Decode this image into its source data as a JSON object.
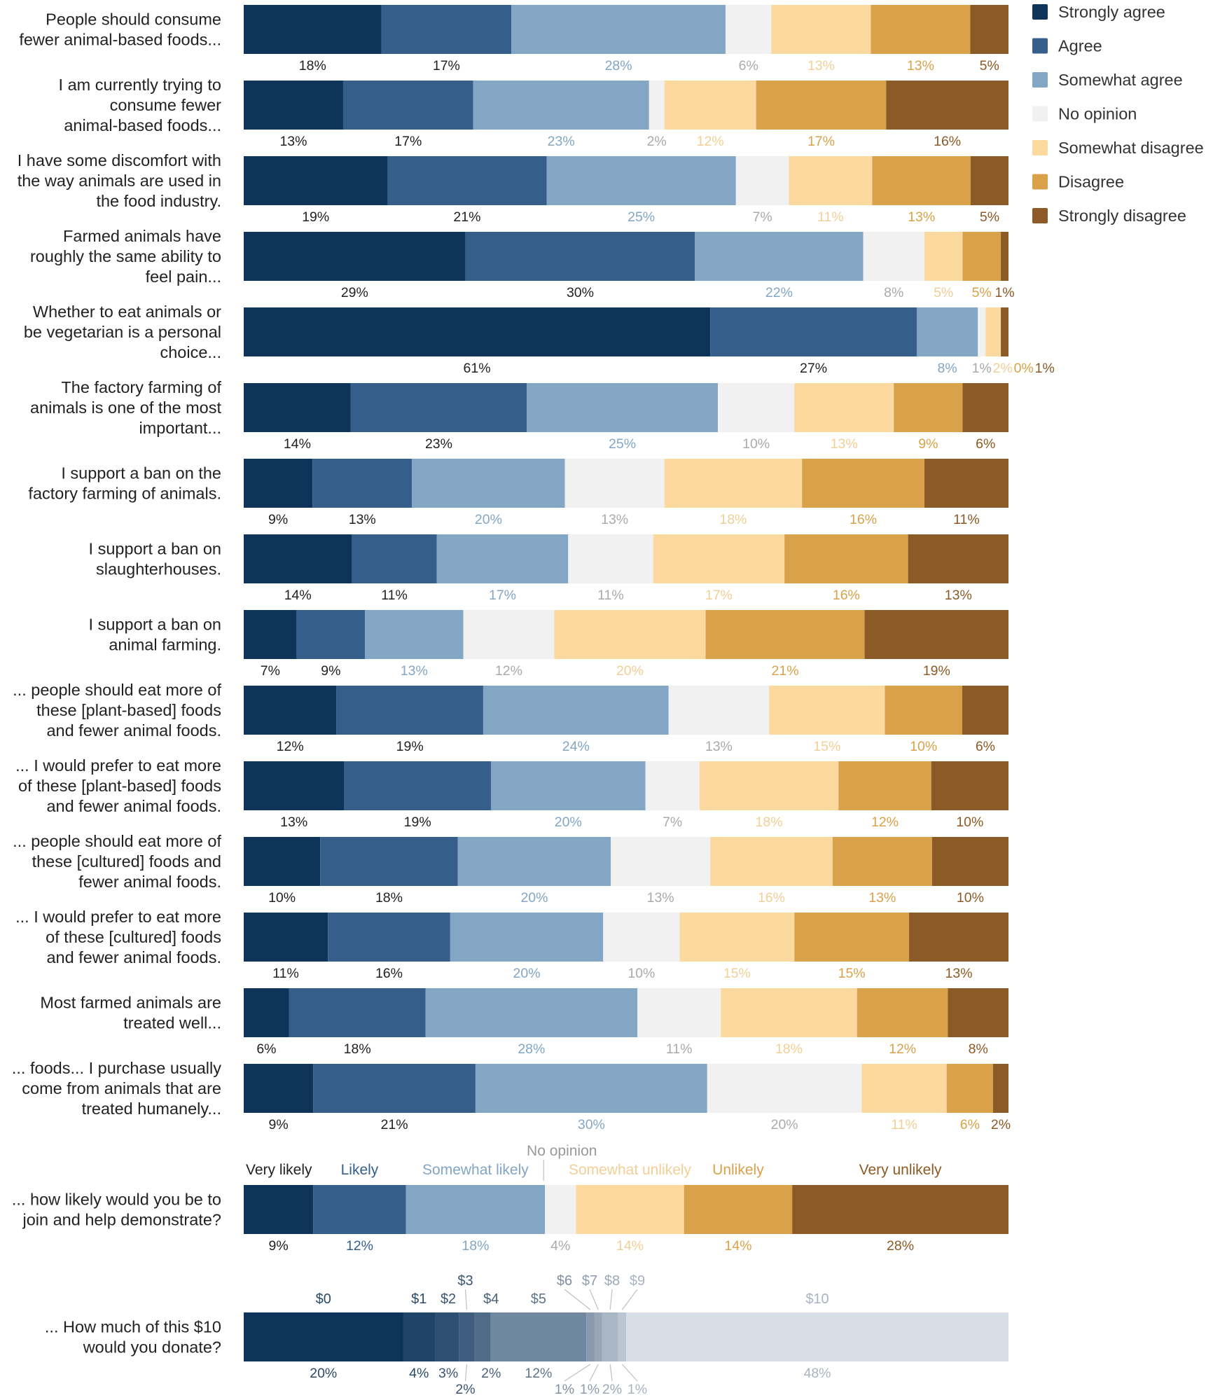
{
  "colors": {
    "strongly_agree": "#0e3459",
    "agree": "#355f8a",
    "somewhat_agree": "#82a6c4",
    "no_opinion": "#f1f1f1",
    "somewhat_disagree": "#fcd99f",
    "disagree": "#d9a24a",
    "strongly_disagree": "#8c5a26",
    "label_text": "#222222",
    "no_opinion_text": "#aaaaaa",
    "somewhat_disagree_text": "#f2cf96"
  },
  "chart_data": [
    {
      "type": "bar",
      "orientation": "horizontal",
      "stacked": "100%",
      "unit": "%",
      "legend_position": "right",
      "series": [
        {
          "name": "Strongly agree",
          "values": [
            18,
            13,
            19,
            29,
            61,
            14,
            9,
            14,
            7,
            12,
            13,
            10,
            11,
            6,
            9
          ]
        },
        {
          "name": "Agree",
          "values": [
            17,
            17,
            21,
            30,
            27,
            23,
            13,
            11,
            9,
            19,
            19,
            18,
            16,
            18,
            21
          ]
        },
        {
          "name": "Somewhat agree",
          "values": [
            28,
            23,
            25,
            22,
            8,
            25,
            20,
            17,
            13,
            24,
            20,
            20,
            20,
            28,
            30
          ]
        },
        {
          "name": "No opinion",
          "values": [
            6,
            2,
            7,
            8,
            1,
            10,
            13,
            11,
            12,
            13,
            7,
            13,
            10,
            11,
            20
          ]
        },
        {
          "name": "Somewhat disagree",
          "values": [
            13,
            12,
            11,
            5,
            2,
            13,
            18,
            17,
            20,
            15,
            18,
            16,
            15,
            18,
            11
          ]
        },
        {
          "name": "Disagree",
          "values": [
            13,
            17,
            13,
            5,
            0,
            9,
            16,
            16,
            21,
            10,
            12,
            13,
            15,
            12,
            6
          ]
        },
        {
          "name": "Strongly disagree",
          "values": [
            5,
            16,
            5,
            1,
            1,
            6,
            11,
            13,
            19,
            6,
            10,
            10,
            13,
            8,
            2
          ]
        }
      ],
      "questions": [
        {
          "label": [
            "People should consume",
            "fewer animal-based foods..."
          ]
        },
        {
          "label": [
            "I am currently trying to",
            "consume fewer",
            "animal-based foods..."
          ]
        },
        {
          "label": [
            "I have some discomfort with",
            "the way animals are used in",
            "the food industry."
          ]
        },
        {
          "label": [
            "Farmed animals have",
            "roughly the same ability to",
            "feel pain..."
          ]
        },
        {
          "label": [
            "Whether to eat animals or",
            "be vegetarian is a personal",
            "choice..."
          ]
        },
        {
          "label": [
            "The factory farming of",
            "animals is one of the most",
            "important..."
          ]
        },
        {
          "label": [
            "I support a ban on the",
            "factory farming of animals."
          ]
        },
        {
          "label": [
            "I support a ban on",
            "slaughterhouses."
          ]
        },
        {
          "label": [
            "I support a ban on",
            "animal farming."
          ]
        },
        {
          "label": [
            "... people should eat more of",
            "these [plant-based] foods",
            "and fewer animal foods."
          ]
        },
        {
          "label": [
            "... I would prefer to eat more",
            "of these [plant-based] foods",
            "and fewer animal foods."
          ]
        },
        {
          "label": [
            "... people should eat more of",
            "these [cultured] foods and",
            "fewer animal foods."
          ]
        },
        {
          "label": [
            "... I would prefer to eat more",
            "of these [cultured] foods",
            "and fewer animal foods."
          ]
        },
        {
          "label": [
            "Most farmed animals are",
            "treated well..."
          ]
        },
        {
          "label": [
            "... foods... I purchase usually",
            "come from animals that are",
            "treated humanely..."
          ]
        }
      ]
    },
    {
      "type": "bar",
      "orientation": "horizontal",
      "stacked": "100%",
      "unit": "%",
      "question": [
        "... how likely would you be to",
        "join and help demonstrate?"
      ],
      "categories": [
        "Very likely",
        "Likely",
        "Somewhat likely",
        "No opinion",
        "Somewhat unlikely",
        "Unlikely",
        "Very unlikely"
      ],
      "values": [
        9,
        12,
        18,
        4,
        14,
        14,
        28
      ]
    },
    {
      "type": "bar",
      "orientation": "horizontal",
      "stacked": "100%",
      "unit": "%",
      "question": [
        "... How much of this $10",
        "would you donate?"
      ],
      "categories": [
        "$0",
        "$1",
        "$2",
        "$3",
        "$4",
        "$5",
        "$6",
        "$7",
        "$8",
        "$9",
        "$10"
      ],
      "values": [
        20,
        4,
        3,
        2,
        2,
        12,
        1,
        1,
        2,
        1,
        48
      ],
      "colors": [
        "#0e3459",
        "#1f4468",
        "#2e5073",
        "#3e5d7e",
        "#4f6b88",
        "#6f879f",
        "#8799ad",
        "#97a7b8",
        "#a9b6c4",
        "#bac5d1",
        "#d8dee6"
      ],
      "text_colors": [
        "#2a4a68",
        "#2a4a68",
        "#3a5673",
        "#3a5673",
        "#4a627c",
        "#5e7489",
        "#8090a2",
        "#8d9caf",
        "#9aa8b8",
        "#a8b4c2",
        "#a8b4c2"
      ]
    }
  ]
}
